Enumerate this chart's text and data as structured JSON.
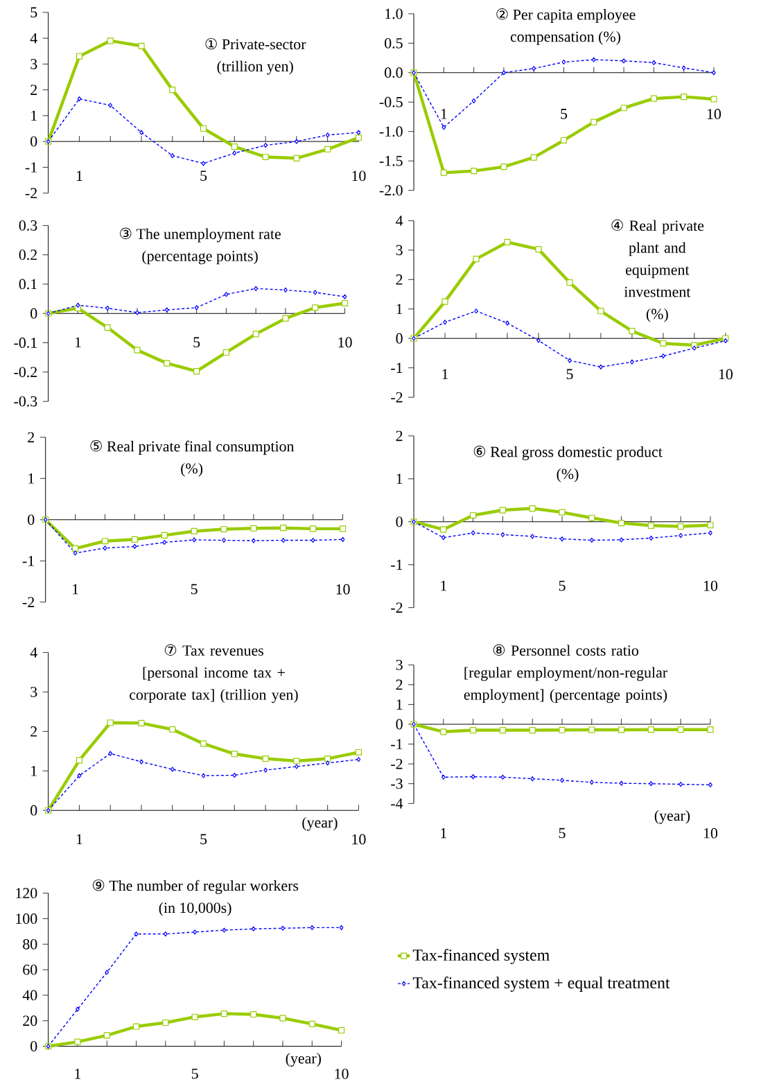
{
  "chart_data": [
    {
      "type": "line",
      "title": "① Private-sector",
      "subtitle": "(trillion yen)",
      "x": [
        0,
        1,
        2,
        3,
        4,
        5,
        6,
        7,
        8,
        9,
        10
      ],
      "xlim": [
        0,
        10
      ],
      "xticks": [
        1,
        {
          "value": 2,
          "label": null
        },
        {
          "value": 3,
          "label": null
        },
        {
          "value": 4,
          "label": null
        },
        5,
        {
          "value": 6,
          "label": null
        },
        {
          "value": 7,
          "label": null
        },
        {
          "value": 8,
          "label": null
        },
        {
          "value": 9,
          "label": null
        },
        10
      ],
      "ylim": [
        -2,
        5
      ],
      "yticks": [
        -2,
        -1,
        0,
        1,
        2,
        3,
        4,
        5
      ],
      "series": [
        {
          "color": "#99cc00",
          "marker": "square",
          "line_style": "solid",
          "values": [
            0,
            3.3,
            3.9,
            3.7,
            2.0,
            0.5,
            -0.2,
            -0.6,
            -0.65,
            -0.3,
            0.15
          ]
        },
        {
          "color": "#0000ff",
          "marker": "diamond",
          "line_style": "dashed",
          "values": [
            0,
            1.65,
            1.4,
            0.35,
            -0.55,
            -0.85,
            -0.45,
            -0.15,
            0.0,
            0.25,
            0.35
          ]
        }
      ]
    },
    {
      "type": "line",
      "title": "② Per capita employee",
      "subtitle": "compensation (%)",
      "x": [
        0,
        1,
        2,
        3,
        4,
        5,
        6,
        7,
        8,
        9,
        10
      ],
      "xlim": [
        0,
        10
      ],
      "xticks": [
        1,
        {
          "value": 2,
          "label": null
        },
        {
          "value": 3,
          "label": null
        },
        {
          "value": 4,
          "label": null
        },
        5,
        {
          "value": 6,
          "label": null
        },
        {
          "value": 7,
          "label": null
        },
        {
          "value": 8,
          "label": null
        },
        {
          "value": 9,
          "label": null
        },
        10
      ],
      "ylim": [
        -2,
        1
      ],
      "yticks": [
        {
          "value": -2,
          "label": "-2.0"
        },
        -1.5,
        {
          "value": -1,
          "label": "-1.0"
        },
        -0.5,
        {
          "value": 0,
          "label": "0.0"
        },
        0.5,
        {
          "value": 1,
          "label": "1.0"
        }
      ],
      "series": [
        {
          "color": "#99cc00",
          "marker": "square",
          "line_style": "solid",
          "values": [
            0,
            -1.7,
            -1.67,
            -1.6,
            -1.44,
            -1.15,
            -0.84,
            -0.6,
            -0.44,
            -0.41,
            -0.45
          ]
        },
        {
          "color": "#0000ff",
          "marker": "diamond",
          "line_style": "dashed",
          "values": [
            0,
            -0.93,
            -0.48,
            0,
            0.07,
            0.18,
            0.22,
            0.2,
            0.17,
            0.08,
            0.0
          ]
        }
      ]
    },
    {
      "type": "line",
      "title": "③ The unemployment rate",
      "subtitle": "(percentage points)",
      "x": [
        0,
        1,
        2,
        3,
        4,
        5,
        6,
        7,
        8,
        9,
        10
      ],
      "xlim": [
        0,
        10
      ],
      "xticks": [
        1,
        {
          "value": 2,
          "label": null
        },
        {
          "value": 3,
          "label": null
        },
        {
          "value": 4,
          "label": null
        },
        5,
        {
          "value": 6,
          "label": null
        },
        {
          "value": 7,
          "label": null
        },
        {
          "value": 8,
          "label": null
        },
        {
          "value": 9,
          "label": null
        },
        10
      ],
      "ylim": [
        -0.3,
        0.3
      ],
      "yticks": [
        -0.3,
        -0.2,
        -0.1,
        0,
        0.1,
        0.2,
        0.3
      ],
      "series": [
        {
          "color": "#99cc00",
          "marker": "square",
          "line_style": "solid",
          "values": [
            0,
            0.018,
            -0.048,
            -0.125,
            -0.17,
            -0.197,
            -0.133,
            -0.07,
            -0.017,
            0.02,
            0.035
          ]
        },
        {
          "color": "#0000ff",
          "marker": "diamond",
          "line_style": "dashed",
          "values": [
            0,
            0.028,
            0.018,
            0.003,
            0.012,
            0.02,
            0.065,
            0.085,
            0.08,
            0.072,
            0.057
          ]
        }
      ]
    },
    {
      "type": "line",
      "title": "④ Real private plant and equipment investment",
      "subtitle": "(%)",
      "x": [
        0,
        1,
        2,
        3,
        4,
        5,
        6,
        7,
        8,
        9,
        10
      ],
      "xlim": [
        0,
        10
      ],
      "xticks": [
        1,
        {
          "value": 2,
          "label": null
        },
        {
          "value": 3,
          "label": null
        },
        {
          "value": 4,
          "label": null
        },
        5,
        {
          "value": 6,
          "label": null
        },
        {
          "value": 7,
          "label": null
        },
        {
          "value": 8,
          "label": null
        },
        {
          "value": 9,
          "label": null
        },
        10
      ],
      "ylim": [
        -2,
        4
      ],
      "yticks": [
        -2,
        -1,
        0,
        1,
        2,
        3,
        4
      ],
      "series": [
        {
          "color": "#99cc00",
          "marker": "square",
          "line_style": "solid",
          "values": [
            0,
            1.25,
            2.7,
            3.27,
            3.03,
            1.9,
            0.93,
            0.25,
            -0.17,
            -0.23,
            0
          ]
        },
        {
          "color": "#0000ff",
          "marker": "diamond",
          "line_style": "dashed",
          "values": [
            0,
            0.55,
            0.93,
            0.52,
            -0.07,
            -0.75,
            -0.97,
            -0.8,
            -0.6,
            -0.33,
            -0.08
          ]
        }
      ]
    },
    {
      "type": "line",
      "title": "⑤ Real private final consumption",
      "subtitle": "(%)",
      "x": [
        0,
        1,
        2,
        3,
        4,
        5,
        6,
        7,
        8,
        9,
        10
      ],
      "xlim": [
        0,
        10
      ],
      "xticks": [
        1,
        {
          "value": 2,
          "label": null
        },
        {
          "value": 3,
          "label": null
        },
        {
          "value": 4,
          "label": null
        },
        5,
        {
          "value": 6,
          "label": null
        },
        {
          "value": 7,
          "label": null
        },
        {
          "value": 8,
          "label": null
        },
        {
          "value": 9,
          "label": null
        },
        10
      ],
      "ylim": [
        -2,
        2
      ],
      "yticks": [
        -2,
        -1,
        0,
        1,
        2
      ],
      "series": [
        {
          "color": "#99cc00",
          "marker": "square",
          "line_style": "solid",
          "values": [
            0,
            -0.7,
            -0.52,
            -0.48,
            -0.38,
            -0.28,
            -0.23,
            -0.21,
            -0.2,
            -0.22,
            -0.22
          ]
        },
        {
          "color": "#0000ff",
          "marker": "diamond",
          "line_style": "dashed",
          "values": [
            0,
            -0.81,
            -0.69,
            -0.65,
            -0.55,
            -0.49,
            -0.5,
            -0.51,
            -0.5,
            -0.5,
            -0.48
          ]
        }
      ]
    },
    {
      "type": "line",
      "title": "⑥ Real gross domestic product",
      "subtitle": "(%)",
      "x": [
        0,
        1,
        2,
        3,
        4,
        5,
        6,
        7,
        8,
        9,
        10
      ],
      "xlim": [
        0,
        10
      ],
      "xticks": [
        1,
        {
          "value": 2,
          "label": null
        },
        {
          "value": 3,
          "label": null
        },
        {
          "value": 4,
          "label": null
        },
        5,
        {
          "value": 6,
          "label": null
        },
        {
          "value": 7,
          "label": null
        },
        {
          "value": 8,
          "label": null
        },
        {
          "value": 9,
          "label": null
        },
        10
      ],
      "ylim": [
        -2,
        2
      ],
      "yticks": [
        -2,
        -1,
        0,
        1,
        2
      ],
      "series": [
        {
          "color": "#99cc00",
          "marker": "square",
          "line_style": "solid",
          "values": [
            0,
            -0.18,
            0.15,
            0.27,
            0.31,
            0.22,
            0.09,
            -0.03,
            -0.09,
            -0.11,
            -0.08
          ]
        },
        {
          "color": "#0000ff",
          "marker": "diamond",
          "line_style": "dashed",
          "values": [
            0,
            -0.37,
            -0.26,
            -0.3,
            -0.34,
            -0.4,
            -0.43,
            -0.42,
            -0.38,
            -0.32,
            -0.26
          ]
        }
      ]
    },
    {
      "type": "line",
      "title": "⑦ Tax revenues",
      "subtitle": "[personal income tax + corporate tax] (trillion yen)",
      "xlabel": "(year)",
      "x": [
        0,
        1,
        2,
        3,
        4,
        5,
        6,
        7,
        8,
        9,
        10
      ],
      "xlim": [
        0,
        10
      ],
      "xticks": [
        1,
        {
          "value": 2,
          "label": null
        },
        {
          "value": 3,
          "label": null
        },
        {
          "value": 4,
          "label": null
        },
        5,
        {
          "value": 6,
          "label": null
        },
        {
          "value": 7,
          "label": null
        },
        {
          "value": 8,
          "label": null
        },
        {
          "value": 9,
          "label": null
        },
        10
      ],
      "ylim": [
        0,
        4
      ],
      "yticks": [
        0,
        1,
        2,
        3,
        4
      ],
      "series": [
        {
          "color": "#99cc00",
          "marker": "square",
          "line_style": "solid",
          "values": [
            0,
            1.27,
            2.22,
            2.21,
            2.05,
            1.69,
            1.43,
            1.31,
            1.25,
            1.31,
            1.47
          ]
        },
        {
          "color": "#0000ff",
          "marker": "diamond",
          "line_style": "dashed",
          "values": [
            0,
            0.88,
            1.44,
            1.23,
            1.04,
            0.88,
            0.89,
            1.02,
            1.11,
            1.2,
            1.29
          ]
        }
      ]
    },
    {
      "type": "line",
      "title": "⑧ Personnel costs ratio",
      "subtitle": "[regular employment/non-regular employment] (percentage points)",
      "xlabel": "(year)",
      "x": [
        0,
        1,
        2,
        3,
        4,
        5,
        6,
        7,
        8,
        9,
        10
      ],
      "xlim": [
        0,
        10
      ],
      "xticks": [
        1,
        {
          "value": 2,
          "label": null
        },
        {
          "value": 3,
          "label": null
        },
        {
          "value": 4,
          "label": null
        },
        5,
        {
          "value": 6,
          "label": null
        },
        {
          "value": 7,
          "label": null
        },
        {
          "value": 8,
          "label": null
        },
        {
          "value": 9,
          "label": null
        },
        10
      ],
      "ylim": [
        -4,
        3
      ],
      "yticks": [
        -4,
        -3,
        -2,
        -1,
        0,
        1,
        2,
        3
      ],
      "series": [
        {
          "color": "#99cc00",
          "marker": "square",
          "line_style": "solid",
          "values": [
            0,
            -0.38,
            -0.3,
            -0.3,
            -0.3,
            -0.29,
            -0.28,
            -0.28,
            -0.27,
            -0.27,
            -0.27
          ]
        },
        {
          "color": "#0000ff",
          "marker": "diamond",
          "line_style": "dashed",
          "values": [
            0,
            -2.67,
            -2.65,
            -2.67,
            -2.75,
            -2.83,
            -2.93,
            -2.98,
            -3.0,
            -3.03,
            -3.06
          ]
        }
      ]
    },
    {
      "type": "line",
      "title": "⑨ The number of regular workers",
      "subtitle": "(in 10,000s)",
      "xlabel": "(year)",
      "legend": "right",
      "x": [
        0,
        1,
        2,
        3,
        4,
        5,
        6,
        7,
        8,
        9,
        10
      ],
      "xlim": [
        0,
        10
      ],
      "xticks": [
        1,
        {
          "value": 2,
          "label": null
        },
        {
          "value": 3,
          "label": null
        },
        {
          "value": 4,
          "label": null
        },
        5,
        {
          "value": 6,
          "label": null
        },
        {
          "value": 7,
          "label": null
        },
        {
          "value": 8,
          "label": null
        },
        {
          "value": 9,
          "label": null
        },
        10
      ],
      "ylim": [
        0,
        120
      ],
      "yticks": [
        0,
        20,
        40,
        60,
        80,
        100,
        120
      ],
      "series": [
        {
          "name": "Tax-financed system",
          "color": "#99cc00",
          "marker": "square",
          "line_style": "solid",
          "values": [
            0,
            3.5,
            8.5,
            15.5,
            18.5,
            23,
            25.5,
            25,
            22,
            17.5,
            12.5
          ]
        },
        {
          "name": "Tax-financed system + equal treatment",
          "color": "#0000ff",
          "marker": "diamond",
          "line_style": "dashed",
          "values": [
            0,
            29,
            58,
            88,
            88,
            89.5,
            91,
            92,
            92.5,
            93,
            93
          ]
        }
      ]
    }
  ]
}
